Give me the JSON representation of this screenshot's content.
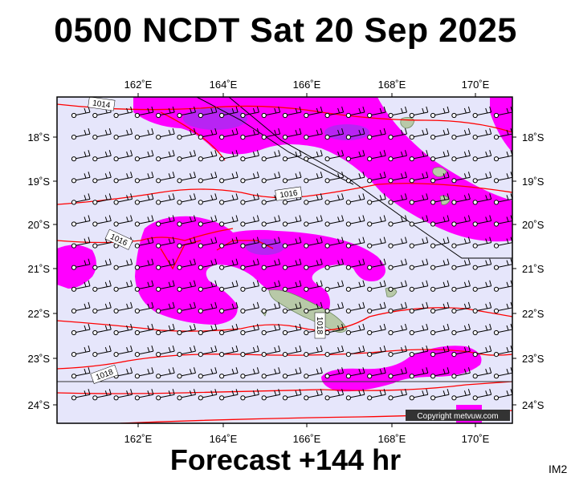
{
  "title": "0500 NCDT Sat 20 Sep 2025",
  "footer": "Forecast +144 hr",
  "code": "IM2",
  "copyright": "Copyright metvuw.com",
  "axes": {
    "lon_labels": [
      "162˚E",
      "164˚E",
      "166˚E",
      "168˚E",
      "170˚E"
    ],
    "lat_labels": [
      "18˚S",
      "19˚S",
      "20˚S",
      "21˚S",
      "22˚S",
      "23˚S",
      "24˚S"
    ],
    "lon_range": [
      160.2,
      170.9
    ],
    "lat_range": [
      -24.4,
      -17.1
    ]
  },
  "isobars": [
    {
      "label": "1014"
    },
    {
      "label": "1016"
    },
    {
      "label": "1016"
    },
    {
      "label": "1018"
    },
    {
      "label": "1018"
    }
  ],
  "colors": {
    "background": "#e6e6fb",
    "precip_light": "#ff00ff",
    "precip_heavy": "#9a33ee",
    "isobar": "#ff0000",
    "land": "#b8c9a8"
  }
}
